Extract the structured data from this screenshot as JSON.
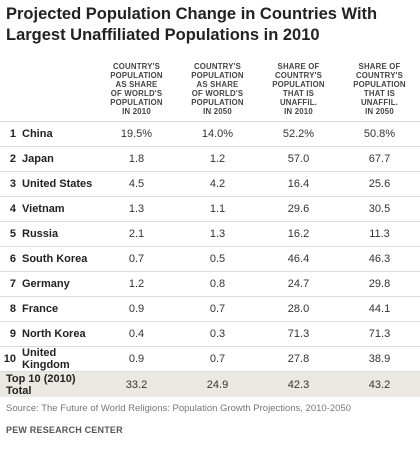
{
  "chart_data": {
    "type": "table",
    "title_lines": [
      "Projected Population Change in Countries With",
      "Largest Unaffiliated Populations in 2010"
    ],
    "columns": [
      {
        "lines": []
      },
      {
        "lines": [
          "COUNTRY'S",
          "POPULATION",
          "AS SHARE",
          "OF WORLD'S",
          "POPULATION",
          "IN 2010"
        ]
      },
      {
        "lines": [
          "COUNTRY'S",
          "POPULATION",
          "AS SHARE",
          "OF WORLD'S",
          "POPULATION",
          "IN 2050"
        ]
      },
      {
        "lines": [
          "SHARE OF",
          "COUNTRY'S",
          "POPULATION",
          "THAT IS",
          "UNAFFIL.",
          "IN 2010"
        ]
      },
      {
        "lines": [
          "SHARE OF",
          "COUNTRY'S",
          "POPULATION",
          "THAT IS",
          "UNAFFIL.",
          "IN 2050"
        ]
      }
    ],
    "rows": [
      {
        "rank": "1",
        "country": "China",
        "values": [
          "19.5%",
          "14.0%",
          "52.2%",
          "50.8%"
        ]
      },
      {
        "rank": "2",
        "country": "Japan",
        "values": [
          "1.8",
          "1.2",
          "57.0",
          "67.7"
        ]
      },
      {
        "rank": "3",
        "country": "United States",
        "values": [
          "4.5",
          "4.2",
          "16.4",
          "25.6"
        ]
      },
      {
        "rank": "4",
        "country": "Vietnam",
        "values": [
          "1.3",
          "1.1",
          "29.6",
          "30.5"
        ]
      },
      {
        "rank": "5",
        "country": "Russia",
        "values": [
          "2.1",
          "1.3",
          "16.2",
          "11.3"
        ]
      },
      {
        "rank": "6",
        "country": "South Korea",
        "values": [
          "0.7",
          "0.5",
          "46.4",
          "46.3"
        ]
      },
      {
        "rank": "7",
        "country": "Germany",
        "values": [
          "1.2",
          "0.8",
          "24.7",
          "29.8"
        ]
      },
      {
        "rank": "8",
        "country": "France",
        "values": [
          "0.9",
          "0.7",
          "28.0",
          "44.1"
        ]
      },
      {
        "rank": "9",
        "country": "North Korea",
        "values": [
          "0.4",
          "0.3",
          "71.3",
          "71.3"
        ]
      },
      {
        "rank": "10",
        "country": "United Kingdom",
        "values": [
          "0.9",
          "0.7",
          "27.8",
          "38.9"
        ]
      }
    ],
    "total": {
      "label": "Top 10 (2010) Total",
      "values": [
        "33.2",
        "24.9",
        "42.3",
        "43.2"
      ]
    }
  },
  "footer": {
    "source": "Source: The Future of World Religions: Population Growth Projections, 2010-2050",
    "organization": "PEW RESEARCH CENTER"
  }
}
